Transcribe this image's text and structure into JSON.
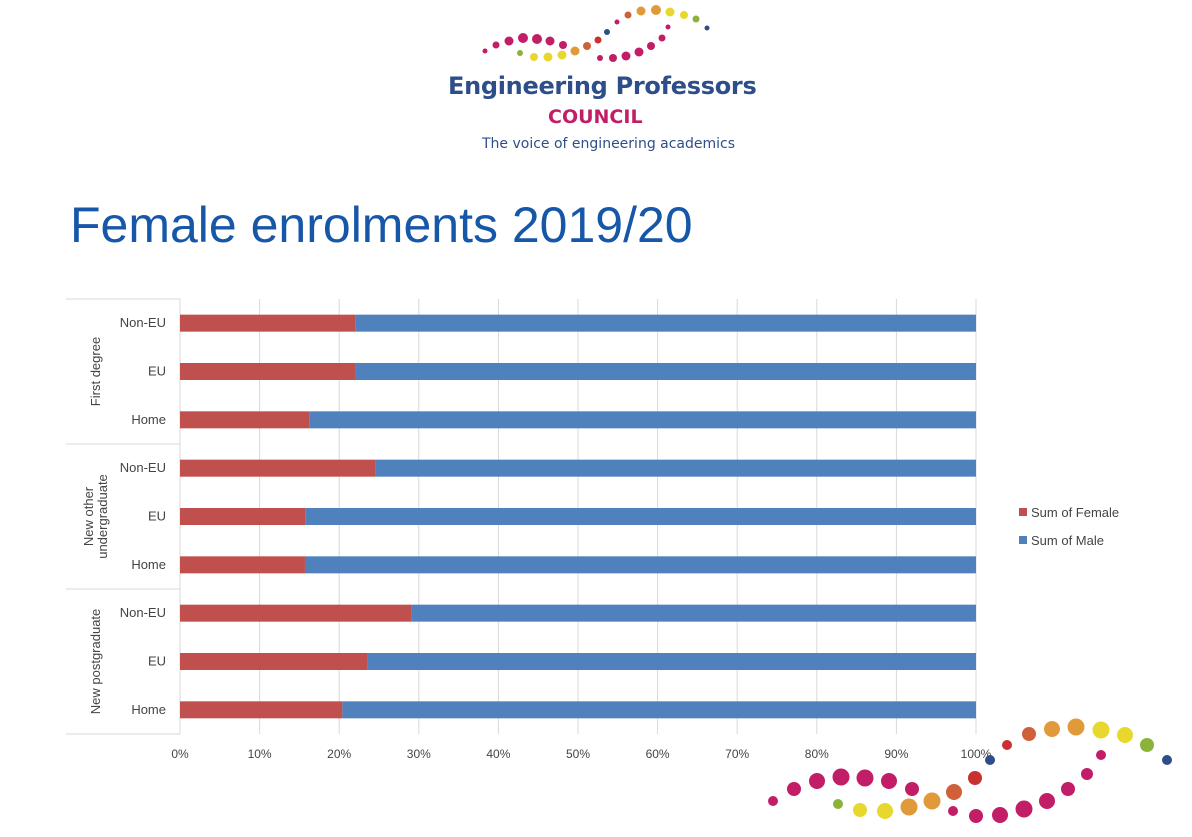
{
  "logo": {
    "name": "Engineering Professors",
    "council": "COUNCIL",
    "tagline": "The voice of engineering academics"
  },
  "slide": {
    "title": "Female enrolments 2019/20"
  },
  "colors": {
    "female": "#c0504d",
    "male": "#4f81bd",
    "title": "#1757a8",
    "grid": "#d9d9d9"
  },
  "chart_data": {
    "type": "bar",
    "orientation": "horizontal",
    "stacking": "100%",
    "groups": [
      {
        "name": "First degree",
        "categories": [
          "Non-EU",
          "EU",
          "Home"
        ]
      },
      {
        "name": "New other undergraduate",
        "categories": [
          "Non-EU",
          "EU",
          "Home"
        ]
      },
      {
        "name": "New postgraduate",
        "categories": [
          "Non-EU",
          "EU",
          "Home"
        ]
      }
    ],
    "series": [
      {
        "name": "Sum of Female",
        "values": [
          22.0,
          22.1,
          16.3,
          24.6,
          15.8,
          15.7,
          29.1,
          23.5,
          20.4
        ]
      },
      {
        "name": "Sum of Male",
        "values": [
          78.0,
          77.9,
          83.7,
          75.4,
          84.2,
          84.3,
          70.9,
          76.5,
          79.6
        ]
      }
    ],
    "xlim": [
      0,
      100
    ],
    "x_ticks": [
      "0%",
      "10%",
      "20%",
      "30%",
      "40%",
      "50%",
      "60%",
      "70%",
      "80%",
      "90%",
      "100%"
    ],
    "grid": true,
    "legend": "right"
  }
}
